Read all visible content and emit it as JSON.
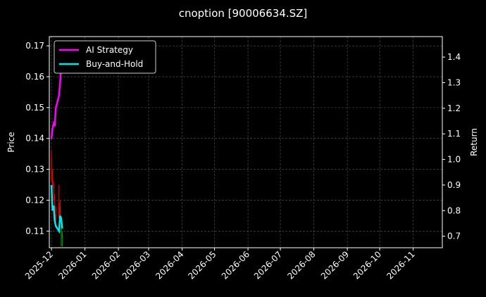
{
  "chart_data": {
    "type": "line",
    "title": "cnoption [90006634.SZ]",
    "ylabel": "Price",
    "y2label": "Return",
    "xlim": [
      "2025-11-29",
      "2026-11-28"
    ],
    "ylim": [
      0.1046,
      0.173
    ],
    "y2lim": [
      0.655,
      1.48
    ],
    "xticks": [
      "2025-12",
      "2026-01",
      "2026-02",
      "2026-03",
      "2026-04",
      "2026-05",
      "2026-06",
      "2026-07",
      "2026-08",
      "2026-09",
      "2026-10",
      "2026-11"
    ],
    "yticks": [
      0.11,
      0.12,
      0.13,
      0.14,
      0.15,
      0.16,
      0.17
    ],
    "y2ticks": [
      0.7,
      0.8,
      0.9,
      1.0,
      1.1,
      1.2,
      1.3,
      1.4
    ],
    "grid": true,
    "legend": "top-left",
    "dates": [
      "2025-12-01",
      "2025-12-02",
      "2025-12-03",
      "2025-12-04",
      "2025-12-05",
      "2025-12-08",
      "2025-12-09",
      "2025-12-10",
      "2025-12-11"
    ],
    "candles": [
      {
        "o": 0.134,
        "h": 0.136,
        "l": 0.126,
        "c": 0.127
      },
      {
        "o": 0.127,
        "h": 0.13,
        "l": 0.124,
        "c": 0.125
      },
      {
        "o": 0.125,
        "h": 0.126,
        "l": 0.12,
        "c": 0.121
      },
      {
        "o": 0.121,
        "h": 0.122,
        "l": 0.116,
        "c": 0.117
      },
      {
        "o": 0.117,
        "h": 0.118,
        "l": 0.112,
        "c": 0.113
      },
      {
        "o": 0.119,
        "h": 0.125,
        "l": 0.114,
        "c": 0.115
      },
      {
        "o": 0.118,
        "h": 0.12,
        "l": 0.113,
        "c": 0.114
      },
      {
        "o": 0.11,
        "h": 0.113,
        "l": 0.105,
        "c": 0.112
      },
      {
        "o": 0.108,
        "h": 0.11,
        "l": 0.105,
        "c": 0.109
      }
    ],
    "series": [
      {
        "name": "AI Strategy",
        "color": "#ff00ff",
        "values": [
          1.08,
          1.12,
          1.14,
          1.13,
          1.2,
          1.25,
          1.3,
          1.36,
          1.42
        ]
      },
      {
        "name": "Buy-and-Hold",
        "color": "#00e5ee",
        "values": [
          0.9,
          0.8,
          0.82,
          0.76,
          0.74,
          0.72,
          0.78,
          0.77,
          0.73
        ]
      }
    ],
    "up_color": "#00a000",
    "down_color": "#ff0000"
  }
}
